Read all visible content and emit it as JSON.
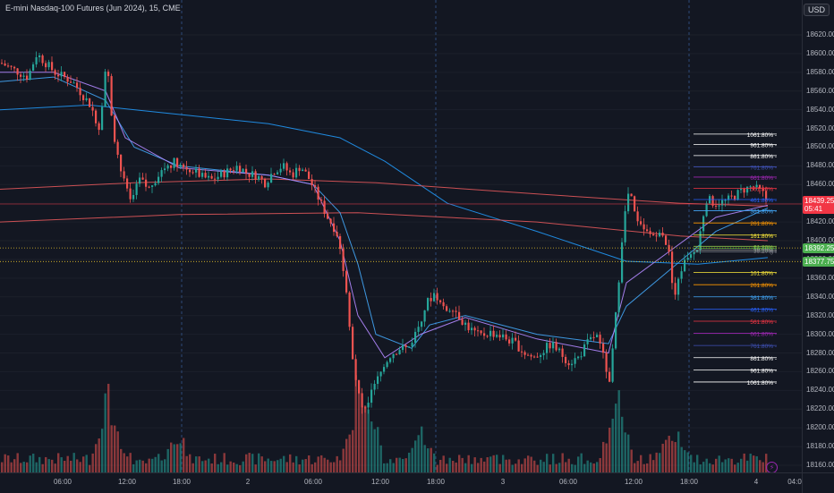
{
  "header": {
    "title": "E-mini Nasdaq-100 Futures (Jun 2024), 15, CME",
    "currency": "USD"
  },
  "price_axis": {
    "ticks": [
      "18620.00",
      "18600.00",
      "18580.00",
      "18560.00",
      "18540.00",
      "18520.00",
      "18500.00",
      "18480.00",
      "18460.00",
      "18440.00",
      "18420.00",
      "18400.00",
      "18380.00",
      "18360.00",
      "18340.00",
      "18320.00",
      "18300.00",
      "18280.00",
      "18260.00",
      "18240.00",
      "18220.00",
      "18200.00",
      "18180.00",
      "18160.00"
    ],
    "last_price": {
      "value": "18439.25",
      "countdown": "05:41",
      "color": "#f23645"
    },
    "marker_1": {
      "value": "18392.25",
      "color": "#4caf50"
    },
    "marker_2": {
      "value": "18377.75",
      "color": "#4caf50"
    }
  },
  "time_axis": {
    "ticks": [
      "06:00",
      "12:00",
      "18:00",
      "2",
      "06:00",
      "12:00",
      "18:00",
      "3",
      "06:00",
      "12:00",
      "18:00",
      "4",
      "04:0"
    ]
  },
  "fib_upper": [
    {
      "label": "1061.80%",
      "color": "#ffffff",
      "price": 18514
    },
    {
      "label": "961.80%",
      "color": "#ffffff",
      "price": 18503
    },
    {
      "label": "861.80%",
      "color": "#ffffff",
      "price": 18491
    },
    {
      "label": "761.80%",
      "color": "#3f51b5",
      "price": 18479
    },
    {
      "label": "661.80%",
      "color": "#9c27b0",
      "price": 18468
    },
    {
      "label": "561.80%",
      "color": "#f23645",
      "price": 18456
    },
    {
      "label": "461.80%",
      "color": "#2962ff",
      "price": 18444
    },
    {
      "label": "361.80%",
      "color": "#42a5f5",
      "price": 18432
    },
    {
      "label": "261.80%",
      "color": "#ff9800",
      "price": 18419
    },
    {
      "label": "161.80%",
      "color": "#ffeb3b",
      "price": 18406
    },
    {
      "label": "61.80%",
      "color": "#8bc34a",
      "price": 18394
    },
    {
      "label": "50.00%",
      "color": "#4caf50",
      "price": 18392
    },
    {
      "label": "38.20%",
      "color": "#9e9e9e",
      "price": 18390
    },
    {
      "label": "0",
      "color": "#787b86",
      "price": 18388
    }
  ],
  "fib_lower": [
    {
      "label": "161.80%",
      "color": "#ffeb3b",
      "price": 18366
    },
    {
      "label": "261.80%",
      "color": "#ff9800",
      "price": 18353
    },
    {
      "label": "361.80%",
      "color": "#42a5f5",
      "price": 18340
    },
    {
      "label": "461.80%",
      "color": "#2962ff",
      "price": 18327
    },
    {
      "label": "561.80%",
      "color": "#f23645",
      "price": 18314
    },
    {
      "label": "661.80%",
      "color": "#9c27b0",
      "price": 18301
    },
    {
      "label": "761.80%",
      "color": "#3f51b5",
      "price": 18288
    },
    {
      "label": "861.80%",
      "color": "#ffffff",
      "price": 18275
    },
    {
      "label": "961.80%",
      "color": "#ffffff",
      "price": 18262
    },
    {
      "label": "1061.80%",
      "color": "#ffffff",
      "price": 18249
    }
  ],
  "chart_data": {
    "type": "candlestick",
    "title": "E-mini Nasdaq-100 Futures (Jun 2024), 15, CME",
    "ylim": [
      18150,
      18630
    ],
    "x_ticks": [
      "06:00",
      "12:00",
      "18:00",
      "2",
      "06:00",
      "12:00",
      "18:00",
      "3",
      "06:00",
      "12:00",
      "18:00",
      "4",
      "04:0"
    ],
    "close_path": [
      [
        0,
        18590
      ],
      [
        30,
        18575
      ],
      [
        40,
        18600
      ],
      [
        60,
        18580
      ],
      [
        80,
        18570
      ],
      [
        100,
        18545
      ],
      [
        110,
        18520
      ],
      [
        118,
        18595
      ],
      [
        125,
        18520
      ],
      [
        135,
        18470
      ],
      [
        145,
        18440
      ],
      [
        155,
        18465
      ],
      [
        165,
        18455
      ],
      [
        175,
        18470
      ],
      [
        185,
        18480
      ],
      [
        195,
        18485
      ],
      [
        205,
        18478
      ],
      [
        215,
        18475
      ],
      [
        225,
        18468
      ],
      [
        235,
        18465
      ],
      [
        245,
        18470
      ],
      [
        255,
        18475
      ],
      [
        265,
        18480
      ],
      [
        275,
        18472
      ],
      [
        285,
        18470
      ],
      [
        295,
        18462
      ],
      [
        305,
        18475
      ],
      [
        315,
        18480
      ],
      [
        325,
        18470
      ],
      [
        335,
        18480
      ],
      [
        345,
        18465
      ],
      [
        355,
        18445
      ],
      [
        365,
        18425
      ],
      [
        375,
        18410
      ],
      [
        385,
        18360
      ],
      [
        395,
        18255
      ],
      [
        405,
        18215
      ],
      [
        415,
        18240
      ],
      [
        425,
        18260
      ],
      [
        435,
        18278
      ],
      [
        445,
        18285
      ],
      [
        455,
        18285
      ],
      [
        465,
        18305
      ],
      [
        475,
        18332
      ],
      [
        485,
        18345
      ],
      [
        495,
        18325
      ],
      [
        505,
        18330
      ],
      [
        515,
        18315
      ],
      [
        525,
        18305
      ],
      [
        535,
        18298
      ],
      [
        545,
        18302
      ],
      [
        555,
        18300
      ],
      [
        565,
        18295
      ],
      [
        575,
        18290
      ],
      [
        585,
        18280
      ],
      [
        595,
        18275
      ],
      [
        605,
        18282
      ],
      [
        615,
        18290
      ],
      [
        625,
        18280
      ],
      [
        635,
        18270
      ],
      [
        645,
        18275
      ],
      [
        655,
        18290
      ],
      [
        665,
        18300
      ],
      [
        675,
        18270
      ],
      [
        680,
        18245
      ],
      [
        688,
        18330
      ],
      [
        695,
        18415
      ],
      [
        702,
        18455
      ],
      [
        710,
        18420
      ],
      [
        718,
        18410
      ],
      [
        728,
        18405
      ],
      [
        738,
        18415
      ],
      [
        748,
        18380
      ],
      [
        752,
        18330
      ],
      [
        758,
        18365
      ],
      [
        768,
        18385
      ],
      [
        778,
        18390
      ],
      [
        788,
        18445
      ],
      [
        798,
        18440
      ],
      [
        810,
        18442
      ],
      [
        820,
        18448
      ],
      [
        830,
        18455
      ],
      [
        840,
        18458
      ],
      [
        852,
        18450
      ],
      [
        858,
        18439
      ]
    ],
    "indicators": [
      {
        "color": "#2196f3",
        "points": [
          [
            0,
            18540
          ],
          [
            100,
            18545
          ],
          [
            200,
            18535
          ],
          [
            300,
            18525
          ],
          [
            380,
            18510
          ],
          [
            430,
            18485
          ],
          [
            500,
            18440
          ],
          [
            600,
            18410
          ],
          [
            700,
            18378
          ],
          [
            780,
            18375
          ],
          [
            858,
            18382
          ]
        ]
      },
      {
        "color": "#e0565a",
        "points": [
          [
            0,
            18455
          ],
          [
            150,
            18462
          ],
          [
            300,
            18466
          ],
          [
            420,
            18462
          ],
          [
            600,
            18450
          ],
          [
            760,
            18440
          ],
          [
            858,
            18437
          ]
        ]
      },
      {
        "color": "#e0565a",
        "points": [
          [
            0,
            18420
          ],
          [
            200,
            18428
          ],
          [
            400,
            18430
          ],
          [
            600,
            18420
          ],
          [
            760,
            18405
          ],
          [
            858,
            18400
          ]
        ]
      },
      {
        "color": "#42a5f5",
        "points": [
          [
            0,
            18570
          ],
          [
            60,
            18575
          ],
          [
            118,
            18550
          ],
          [
            150,
            18500
          ],
          [
            200,
            18480
          ],
          [
            300,
            18470
          ],
          [
            350,
            18460
          ],
          [
            380,
            18430
          ],
          [
            400,
            18375
          ],
          [
            420,
            18300
          ],
          [
            460,
            18285
          ],
          [
            480,
            18310
          ],
          [
            520,
            18320
          ],
          [
            600,
            18300
          ],
          [
            680,
            18290
          ],
          [
            700,
            18330
          ],
          [
            750,
            18370
          ],
          [
            800,
            18410
          ],
          [
            858,
            18435
          ]
        ]
      },
      {
        "color": "#b388ff",
        "points": [
          [
            0,
            18580
          ],
          [
            60,
            18580
          ],
          [
            118,
            18560
          ],
          [
            140,
            18510
          ],
          [
            200,
            18478
          ],
          [
            300,
            18470
          ],
          [
            350,
            18460
          ],
          [
            380,
            18400
          ],
          [
            400,
            18320
          ],
          [
            430,
            18275
          ],
          [
            470,
            18300
          ],
          [
            520,
            18318
          ],
          [
            600,
            18295
          ],
          [
            680,
            18280
          ],
          [
            700,
            18355
          ],
          [
            750,
            18390
          ],
          [
            800,
            18425
          ],
          [
            858,
            18438
          ]
        ]
      }
    ],
    "session_dividers_x": [
      203,
      487,
      770
    ],
    "volume_note": "volume histogram bars, green/red, at bottom"
  }
}
